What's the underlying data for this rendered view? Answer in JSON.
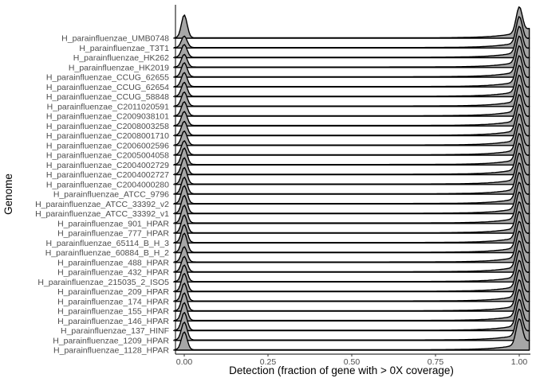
{
  "chart_data": {
    "type": "ridgeline",
    "xlabel": "Detection (fraction of gene with > 0X coverage)",
    "ylabel": "Genome",
    "xlim": [
      0,
      1
    ],
    "x_ticks": [
      "0.00",
      "0.25",
      "0.50",
      "0.75",
      "1.00"
    ],
    "x_tick_values": [
      0,
      0.25,
      0.5,
      0.75,
      1.0
    ],
    "fill_color": "#a6a6a6",
    "line_color": "#000000",
    "grid": false,
    "legend": "none",
    "genomes": [
      "H_parainfluenzae_UMB0748",
      "H_parainfluenzae_T3T1",
      "H_parainfluenzae_HK262",
      "H_parainfluenzae_HK2019",
      "H_parainfluenzae_CCUG_62655",
      "H_parainfluenzae_CCUG_62654",
      "H_parainfluenzae_CCUG_58848",
      "H_parainfluenzae_C2011020591",
      "H_parainfluenzae_C2009038101",
      "H_parainfluenzae_C2008003258",
      "H_parainfluenzae_C2008001710",
      "H_parainfluenzae_C2006002596",
      "H_parainfluenzae_C2005004058",
      "H_parainfluenzae_C2004002729",
      "H_parainfluenzae_C2004002727",
      "H_parainfluenzae_C2004000280",
      "H_parainfluenzae_ATCC_9796",
      "H_parainfluenzae_ATCC_33392_v2",
      "H_parainfluenzae_ATCC_33392_v1",
      "H_parainfluenzae_901_HPAR",
      "H_parainfluenzae_777_HPAR",
      "H_parainfluenzae_65114_B_H_3",
      "H_parainfluenzae_60884_B_H_2",
      "H_parainfluenzae_488_HPAR",
      "H_parainfluenzae_432_HPAR",
      "H_parainfluenzae_215035_2_ISO5",
      "H_parainfluenzae_209_HPAR",
      "H_parainfluenzae_174_HPAR",
      "H_parainfluenzae_155_HPAR",
      "H_parainfluenzae_146_HPAR",
      "H_parainfluenzae_137_HINF",
      "H_parainfluenzae_1209_HPAR",
      "H_parainfluenzae_1128_HPAR"
    ],
    "density_peaks": {
      "peak_locations": [
        0.0,
        1.0
      ],
      "left_peak_relative_height": [
        0.9,
        0.45,
        0.5,
        0.5,
        0.55,
        0.55,
        0.55,
        0.55,
        0.55,
        0.55,
        0.55,
        0.55,
        0.55,
        0.65,
        0.65,
        0.65,
        0.65,
        0.7,
        0.7,
        0.7,
        0.7,
        0.7,
        0.75,
        0.6,
        0.6,
        0.65,
        0.7,
        0.7,
        0.7,
        0.7,
        0.7,
        0.7,
        0.7
      ],
      "right_peak_relative_height": [
        1.0,
        1.0,
        1.0,
        1.0,
        1.0,
        1.0,
        1.0,
        1.0,
        1.0,
        1.0,
        1.0,
        1.0,
        1.0,
        1.0,
        1.0,
        1.0,
        1.0,
        1.0,
        1.0,
        1.0,
        1.0,
        1.0,
        1.0,
        1.0,
        1.0,
        1.0,
        1.0,
        1.0,
        1.0,
        1.0,
        1.0,
        1.0,
        1.0
      ]
    }
  }
}
